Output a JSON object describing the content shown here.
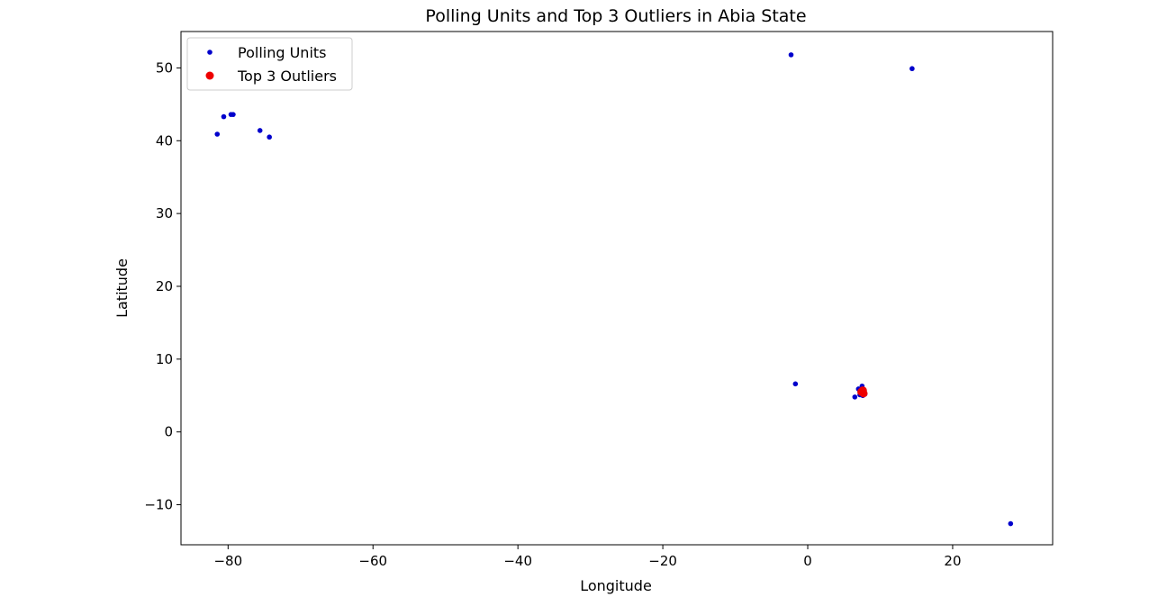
{
  "chart_data": {
    "type": "scatter",
    "title": "Polling Units and Top 3 Outliers in Abia State",
    "xlabel": "Longitude",
    "ylabel": "Latitude",
    "xlim": [
      -86.5,
      33.8
    ],
    "ylim": [
      -15.5,
      55
    ],
    "xticks": [
      -80,
      -60,
      -40,
      -20,
      0,
      20
    ],
    "yticks": [
      -10,
      0,
      10,
      20,
      30,
      40,
      50
    ],
    "xtick_labels": [
      "−80",
      "−60",
      "−40",
      "−20",
      "0",
      "20"
    ],
    "ytick_labels": [
      "−10",
      "0",
      "10",
      "20",
      "30",
      "40",
      "50"
    ],
    "grid": false,
    "legend_position": "upper-left",
    "series": [
      {
        "name": "Polling Units",
        "color": "#0000cc",
        "marker": "small-dot",
        "points": [
          {
            "x": -2.3,
            "y": 51.8
          },
          {
            "x": 14.4,
            "y": 49.9
          },
          {
            "x": -80.6,
            "y": 43.3
          },
          {
            "x": -79.6,
            "y": 43.6
          },
          {
            "x": -79.3,
            "y": 43.6
          },
          {
            "x": -75.6,
            "y": 41.4
          },
          {
            "x": -74.3,
            "y": 40.5
          },
          {
            "x": -81.5,
            "y": 40.9
          },
          {
            "x": -1.7,
            "y": 6.6
          },
          {
            "x": 7.0,
            "y": 5.9
          },
          {
            "x": 7.5,
            "y": 6.3
          },
          {
            "x": 7.8,
            "y": 5.7
          },
          {
            "x": 7.2,
            "y": 5.1
          },
          {
            "x": 7.6,
            "y": 5.0
          },
          {
            "x": 6.5,
            "y": 4.8
          },
          {
            "x": 7.9,
            "y": 5.2
          },
          {
            "x": 7.3,
            "y": 5.5
          },
          {
            "x": 28.0,
            "y": -12.6
          }
        ]
      },
      {
        "name": "Top 3 Outliers",
        "color": "#ee0000",
        "marker": "dot",
        "points": [
          {
            "x": 7.4,
            "y": 5.5
          },
          {
            "x": 7.7,
            "y": 5.3
          },
          {
            "x": 7.6,
            "y": 5.7
          }
        ]
      }
    ]
  }
}
